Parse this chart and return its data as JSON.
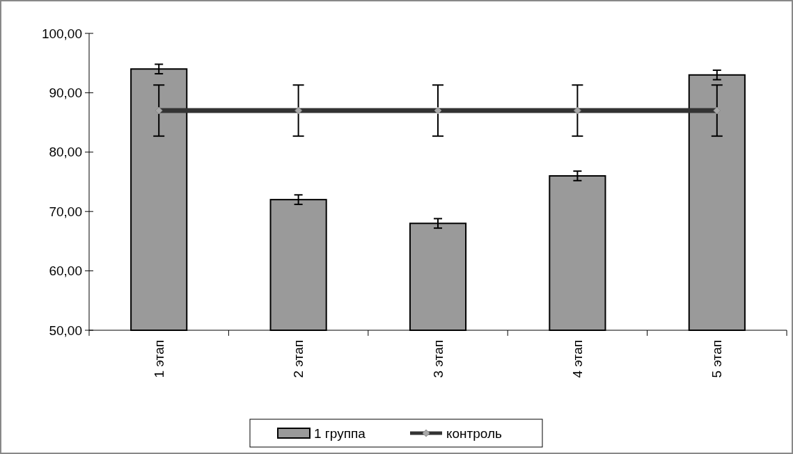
{
  "chart_data": {
    "type": "bar",
    "categories": [
      "1 этап",
      "2 этап",
      "3 этап",
      "4 этап",
      "5 этап"
    ],
    "series": [
      {
        "name": "1 группа",
        "color": "#9a9a9a",
        "values": [
          94,
          72,
          68,
          76,
          93
        ],
        "errors": [
          0.8,
          0.8,
          0.8,
          0.8,
          0.8
        ]
      },
      {
        "name": "контроль",
        "type": "line",
        "color": "#333333",
        "values": [
          87,
          87,
          87,
          87,
          87
        ],
        "errors": [
          4.3,
          4.3,
          4.3,
          4.3,
          4.3
        ],
        "marker": "diamond"
      }
    ],
    "ylim": [
      50,
      100
    ],
    "yticks": [
      {
        "value": 50,
        "label": "50,00"
      },
      {
        "value": 60,
        "label": "60,00"
      },
      {
        "value": 70,
        "label": "70,00"
      },
      {
        "value": 80,
        "label": "80,00"
      },
      {
        "value": 90,
        "label": "90,00"
      },
      {
        "value": 100,
        "label": "100,00"
      }
    ],
    "grid": false,
    "legend": "bottom"
  }
}
